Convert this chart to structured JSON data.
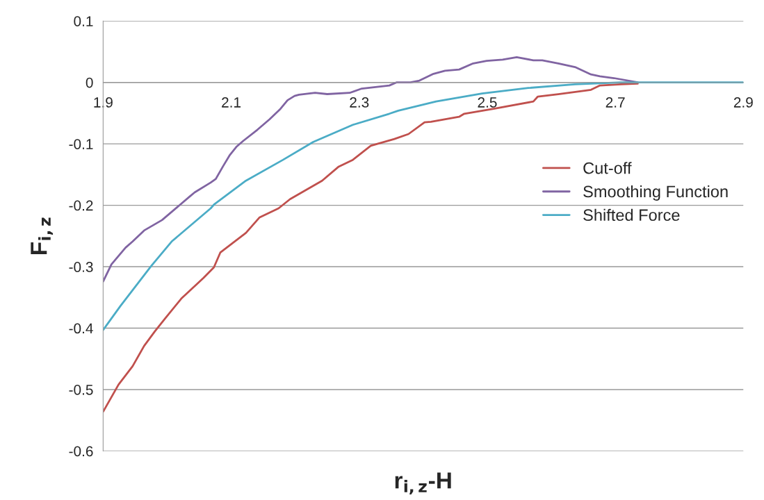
{
  "chart_data": {
    "type": "line",
    "xlabel": "r$_{i,z}$-H",
    "ylabel": "F$_{i,z}$",
    "xlim": [
      1.9,
      2.9
    ],
    "xticks": [
      1.9,
      2.1,
      2.3,
      2.5,
      2.7,
      2.9
    ],
    "ylim": [
      -0.6,
      0.1
    ],
    "yticks": [
      0.1,
      0,
      {
        "value": -0.1,
        "label": "-0.1"
      },
      {
        "value": -0.2,
        "label": "-0.2"
      },
      {
        "value": -0.3,
        "label": "-0.3"
      },
      {
        "value": -0.4,
        "label": "-0.4"
      },
      {
        "value": -0.5,
        "label": "-0.5"
      },
      {
        "value": -0.6,
        "label": "-0.6"
      }
    ],
    "grid": "y",
    "legend": "right",
    "marker": "none",
    "line_style": "solid",
    "series": [
      {
        "name": "Cut-off",
        "color": "#c0504d",
        "x": [
          1.9,
          1.924,
          1.946,
          1.964,
          1.981,
          1.997,
          2.022,
          2.057,
          2.073,
          2.083,
          2.123,
          2.144,
          2.174,
          2.192,
          2.217,
          2.242,
          2.268,
          2.29,
          2.318,
          2.355,
          2.377,
          2.402,
          2.412,
          2.456,
          2.464,
          2.51,
          2.572,
          2.579,
          2.611,
          2.662,
          2.676,
          2.709,
          2.735
        ],
        "values": [
          -0.536,
          -0.492,
          -0.462,
          -0.429,
          -0.405,
          -0.384,
          -0.352,
          -0.318,
          -0.301,
          -0.277,
          -0.245,
          -0.22,
          -0.205,
          -0.19,
          -0.175,
          -0.16,
          -0.137,
          -0.126,
          -0.103,
          -0.092,
          -0.084,
          -0.065,
          -0.064,
          -0.056,
          -0.051,
          -0.043,
          -0.031,
          -0.023,
          -0.019,
          -0.012,
          -0.005,
          -0.003,
          -0.002
        ]
      },
      {
        "name": "Smoothing Function",
        "color": "#8064a2",
        "x": [
          1.9,
          1.913,
          1.935,
          1.946,
          1.964,
          1.992,
          2.018,
          2.036,
          2.043,
          2.068,
          2.076,
          2.087,
          2.098,
          2.108,
          2.119,
          2.141,
          2.16,
          2.177,
          2.188,
          2.199,
          2.206,
          2.231,
          2.25,
          2.285,
          2.304,
          2.347,
          2.358,
          2.38,
          2.394,
          2.416,
          2.434,
          2.456,
          2.478,
          2.499,
          2.524,
          2.546,
          2.572,
          2.586,
          2.611,
          2.637,
          2.662,
          2.676,
          2.698,
          2.735
        ],
        "values": [
          -0.324,
          -0.296,
          -0.269,
          -0.259,
          -0.241,
          -0.224,
          -0.201,
          -0.185,
          -0.179,
          -0.163,
          -0.157,
          -0.137,
          -0.118,
          -0.105,
          -0.095,
          -0.077,
          -0.06,
          -0.043,
          -0.029,
          -0.022,
          -0.02,
          -0.017,
          -0.019,
          -0.017,
          -0.01,
          -0.005,
          0.0,
          0.0,
          0.003,
          0.014,
          0.019,
          0.021,
          0.031,
          0.035,
          0.037,
          0.041,
          0.036,
          0.036,
          0.031,
          0.025,
          0.013,
          0.01,
          0.007,
          0.0
        ]
      },
      {
        "name": "Shifted Force",
        "color": "#4bacc6",
        "x": [
          1.9,
          1.927,
          1.975,
          2.007,
          2.068,
          2.073,
          2.123,
          2.181,
          2.228,
          2.29,
          2.347,
          2.361,
          2.42,
          2.492,
          2.564,
          2.637,
          2.709,
          2.735,
          2.9
        ],
        "values": [
          -0.403,
          -0.364,
          -0.299,
          -0.259,
          -0.205,
          -0.199,
          -0.16,
          -0.126,
          -0.097,
          -0.069,
          -0.051,
          -0.046,
          -0.031,
          -0.018,
          -0.009,
          -0.003,
          0.0,
          0.0,
          0.0
        ]
      }
    ]
  }
}
